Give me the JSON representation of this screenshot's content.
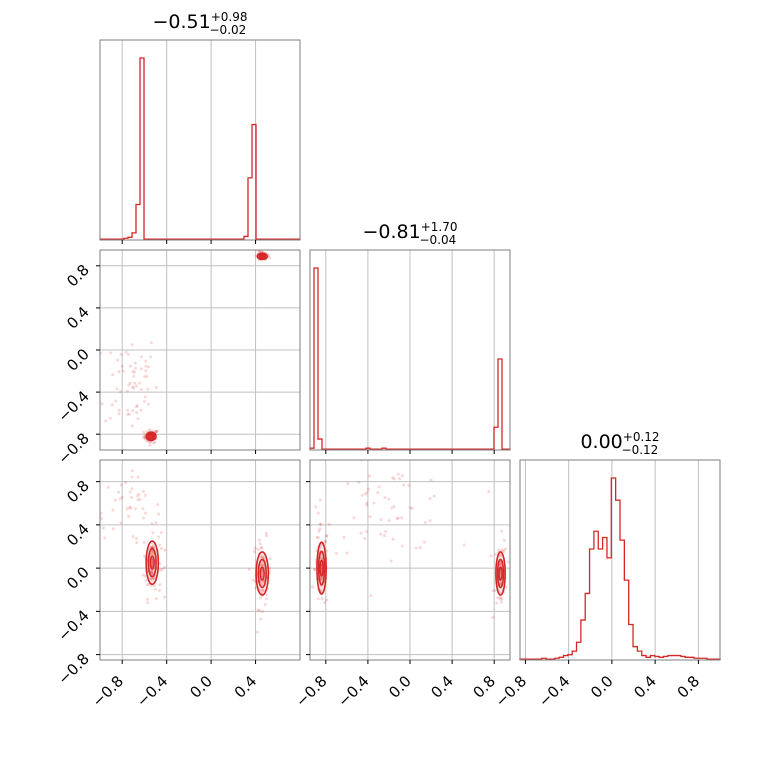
{
  "chart_data": {
    "type": "corner",
    "color": "#d62728",
    "grid": true,
    "params": [
      {
        "range": [
          -1.0,
          0.8
        ],
        "title": {
          "value": "−0.51",
          "upper": "+0.98",
          "lower": "−0.02"
        },
        "ticks": [
          -0.8,
          -0.4,
          0.0,
          0.4
        ],
        "tick_labels": [
          "−0.8",
          "−0.4",
          "0.0",
          "0.4"
        ]
      },
      {
        "range": [
          -0.95,
          0.95
        ],
        "title": {
          "value": "−0.81",
          "upper": "+1.70",
          "lower": "−0.04"
        },
        "ticks": [
          -0.8,
          -0.4,
          0.0,
          0.4,
          0.8
        ],
        "tick_labels": [
          "−0.8",
          "−0.4",
          "0.0",
          "0.4",
          "0.8"
        ]
      },
      {
        "range": [
          -0.85,
          1.0
        ],
        "title": {
          "value": "0.00",
          "upper": "+0.12",
          "lower": "−0.12"
        },
        "ticks": [
          -0.8,
          -0.4,
          0.0,
          0.4,
          0.8
        ],
        "tick_labels": [
          "−0.8",
          "−0.4",
          "0.0",
          "0.4",
          "0.8"
        ]
      }
    ],
    "histograms": [
      {
        "param": 0,
        "bin_edges_range": [
          -1.0,
          0.8
        ],
        "counts": [
          1,
          1,
          1,
          1,
          1,
          1,
          2,
          3,
          8,
          40,
          205,
          1,
          1,
          1,
          1,
          1,
          1,
          1,
          1,
          1,
          1,
          1,
          1,
          1,
          1,
          1,
          1,
          1,
          1,
          1,
          1,
          1,
          1,
          1,
          1,
          1,
          4,
          70,
          130,
          1,
          1,
          1,
          1,
          1,
          1,
          1,
          1,
          1,
          1,
          1
        ]
      },
      {
        "param": 1,
        "bin_edges_range": [
          -0.95,
          0.95
        ],
        "counts": [
          2,
          200,
          12,
          1,
          1,
          1,
          1,
          1,
          1,
          1,
          1,
          1,
          1,
          1,
          2,
          1,
          1,
          1,
          2,
          1,
          1,
          1,
          1,
          1,
          1,
          1,
          1,
          1,
          1,
          1,
          1,
          1,
          1,
          1,
          1,
          1,
          1,
          1,
          1,
          1,
          1,
          1,
          1,
          1,
          1,
          1,
          25,
          100,
          1,
          1
        ]
      },
      {
        "param": 2,
        "bin_edges_range": [
          -0.85,
          1.0
        ],
        "counts": [
          1,
          1,
          1,
          1,
          1,
          2,
          1,
          1,
          2,
          3,
          5,
          6,
          10,
          20,
          45,
          75,
          125,
          145,
          125,
          138,
          115,
          205,
          180,
          135,
          90,
          40,
          15,
          10,
          5,
          3,
          5,
          4,
          3,
          4,
          5,
          5,
          5,
          4,
          3,
          3,
          2,
          2,
          2,
          1,
          1,
          1
        ]
      }
    ],
    "pairs": [
      {
        "x_param": 0,
        "y_param": 1,
        "clusters": [
          {
            "x": -0.54,
            "y": -0.82,
            "sx": 0.02,
            "sy": 0.02,
            "n": 60,
            "contour": true
          },
          {
            "x": 0.46,
            "y": 0.89,
            "sx": 0.02,
            "sy": 0.015,
            "n": 40,
            "contour": true
          },
          {
            "x": -0.72,
            "y": -0.3,
            "sx": 0.12,
            "sy": 0.25,
            "n": 60,
            "contour": false
          }
        ]
      },
      {
        "x_param": 0,
        "y_param": 2,
        "clusters": [
          {
            "x": -0.53,
            "y": 0.05,
            "sx": 0.025,
            "sy": 0.1,
            "n": 80,
            "contour": true
          },
          {
            "x": 0.46,
            "y": -0.05,
            "sx": 0.025,
            "sy": 0.1,
            "n": 60,
            "contour": true
          },
          {
            "x": -0.75,
            "y": 0.55,
            "sx": 0.15,
            "sy": 0.15,
            "n": 40,
            "contour": false
          }
        ]
      },
      {
        "x_param": 1,
        "y_param": 2,
        "clusters": [
          {
            "x": -0.84,
            "y": 0.0,
            "sx": 0.02,
            "sy": 0.12,
            "n": 80,
            "contour": true
          },
          {
            "x": 0.86,
            "y": -0.05,
            "sx": 0.02,
            "sy": 0.1,
            "n": 60,
            "contour": true
          },
          {
            "x": -0.2,
            "y": 0.55,
            "sx": 0.3,
            "sy": 0.2,
            "n": 60,
            "contour": false
          }
        ]
      }
    ]
  }
}
